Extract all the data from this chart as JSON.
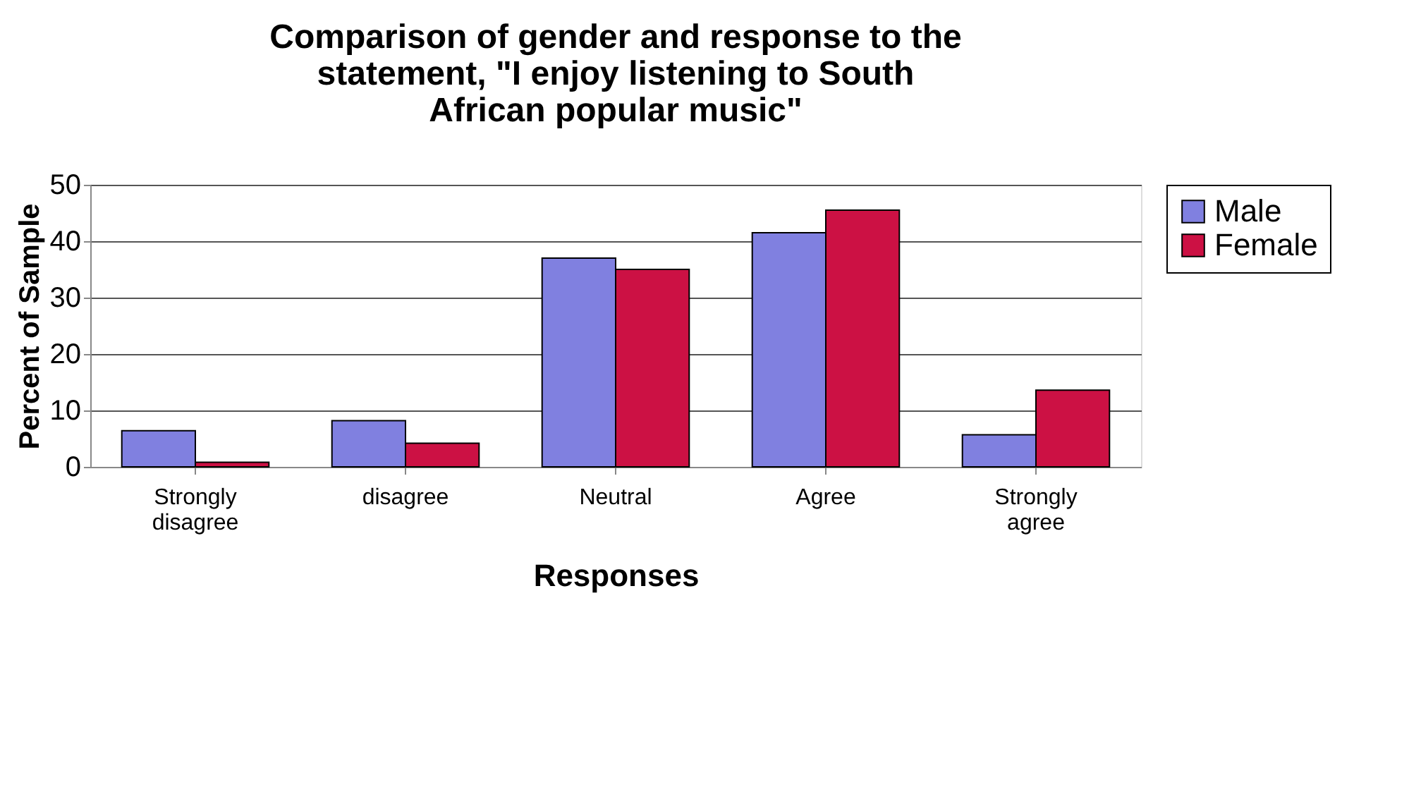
{
  "chart_data": {
    "type": "bar",
    "title": "Comparison of gender and response to the statement, \"I enjoy listening to South African popular music\"",
    "xlabel": "Responses",
    "ylabel": "Percent of Sample",
    "categories": [
      "Strongly\ndisagree",
      "disagree",
      "Neutral",
      "Agree",
      "Strongly\nagree"
    ],
    "series": [
      {
        "name": "Male",
        "color": "#8080e0",
        "values": [
          6.4,
          8.2,
          37,
          41.5,
          5.7
        ]
      },
      {
        "name": "Female",
        "color": "#cc1144",
        "values": [
          0.8,
          4.2,
          35,
          45.5,
          13.6
        ]
      }
    ],
    "ylim": [
      0,
      50
    ],
    "yticks": [
      0,
      10,
      20,
      30,
      40,
      50
    ],
    "grid": "y",
    "legend": "right"
  }
}
